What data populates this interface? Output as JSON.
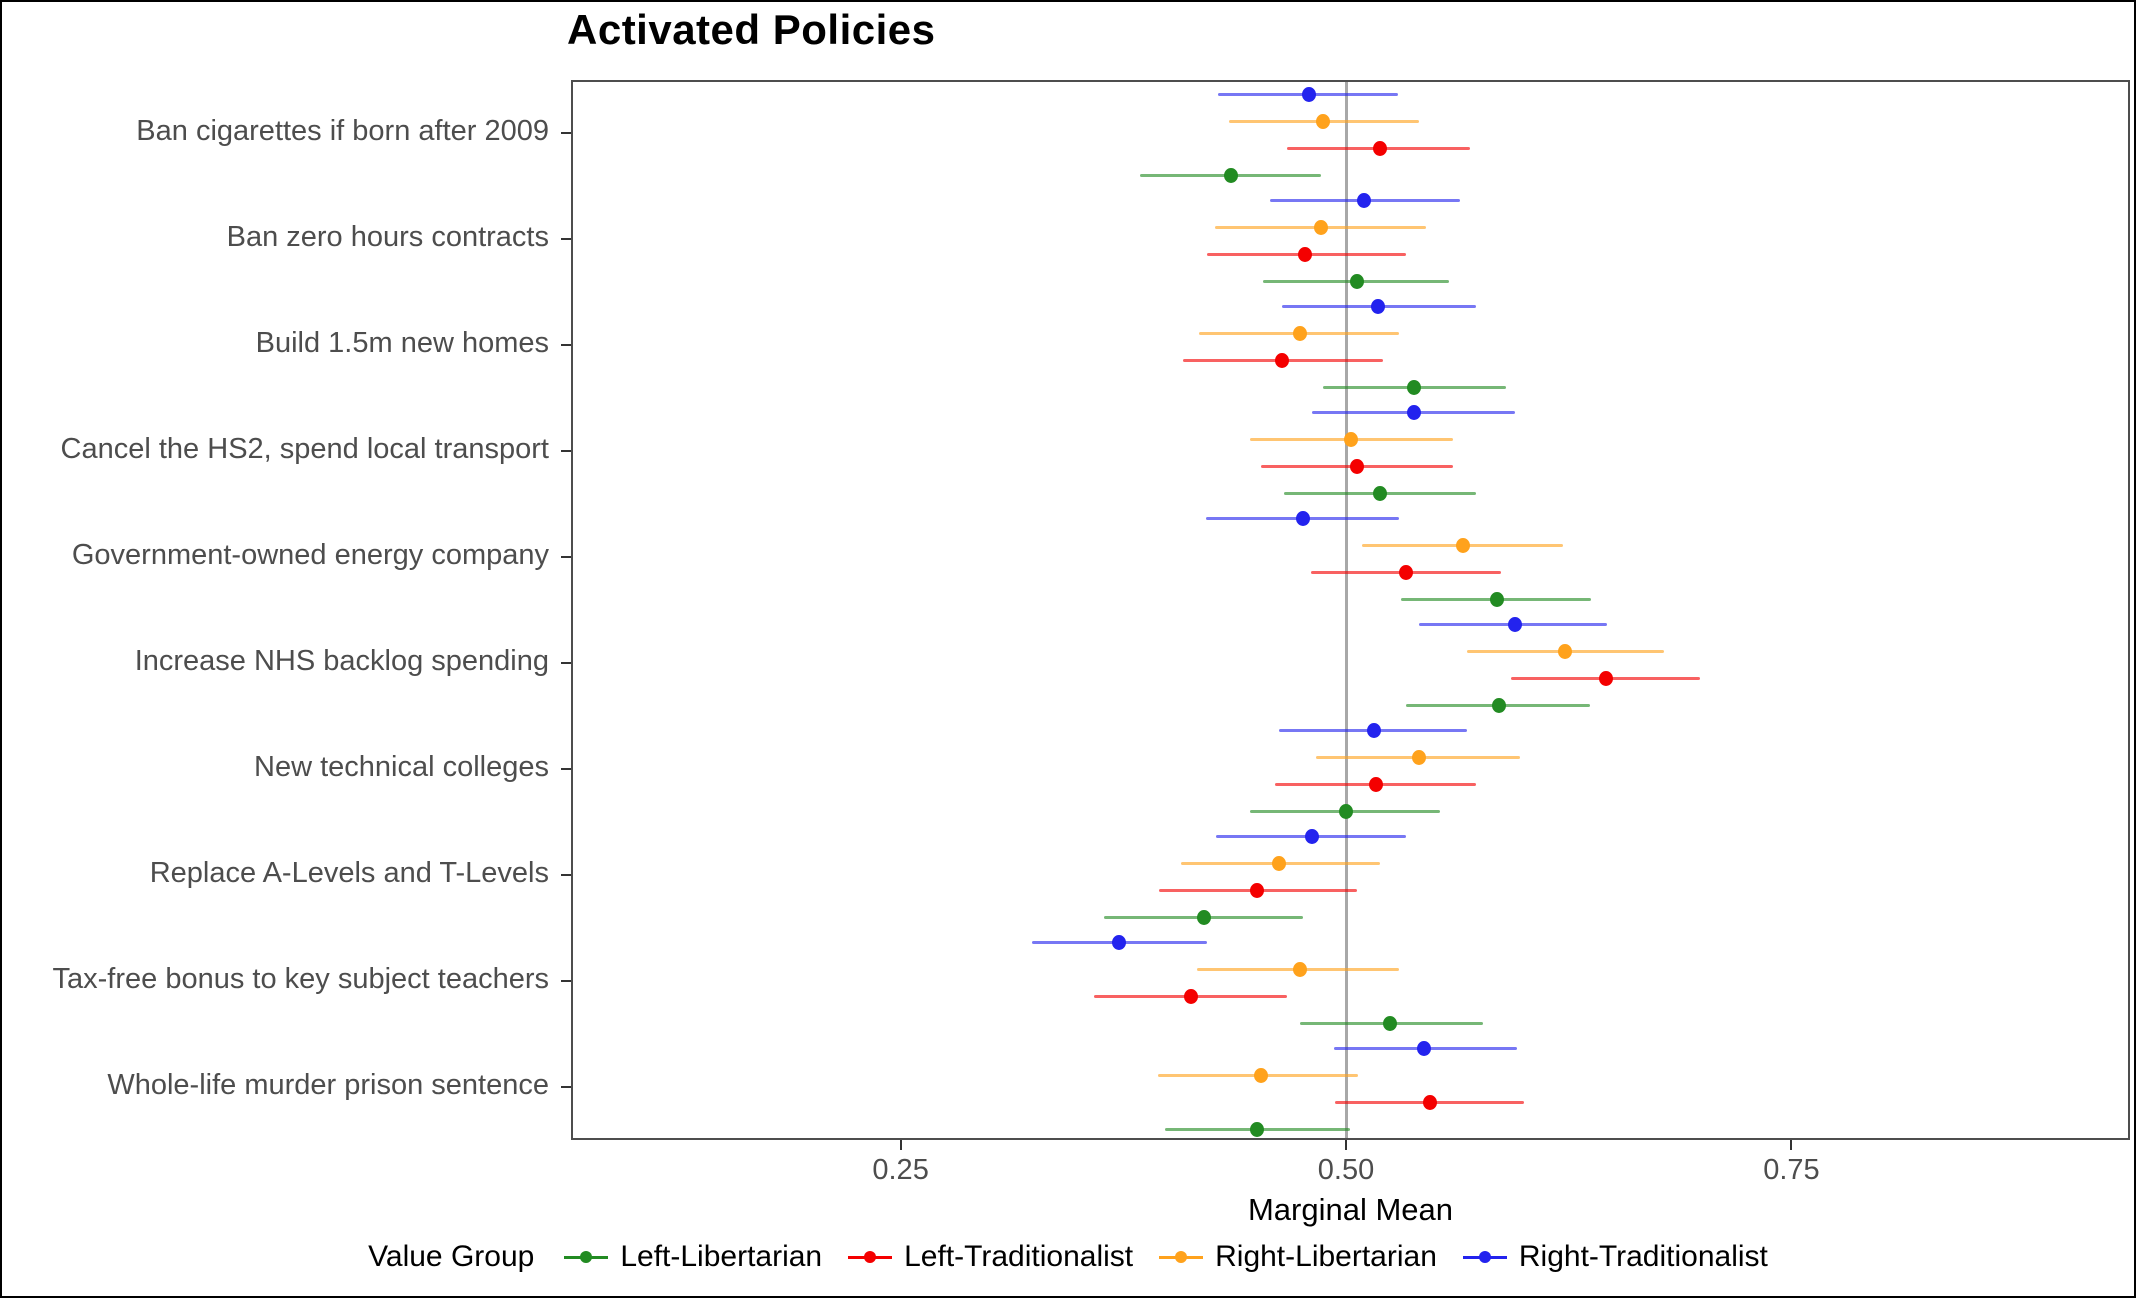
{
  "chart_data": {
    "type": "scatter",
    "variant": "dot-whisker",
    "title": "Activated Policies",
    "xlabel": "Marginal Mean",
    "legend_title": "Value Group",
    "legend_position": "bottom",
    "grid": false,
    "xlim": [
      0.065,
      0.94
    ],
    "x_ticks": [
      {
        "value": 0.25,
        "label": "0.25"
      },
      {
        "value": 0.5,
        "label": "0.50"
      },
      {
        "value": 0.75,
        "label": "0.75"
      }
    ],
    "reference_line_x": 0.5,
    "categories": [
      "Ban cigarettes if born after 2009",
      "Ban zero hours contracts",
      "Build 1.5m new homes",
      "Cancel the HS2, spend local transport",
      "Government-owned energy company",
      "Increase NHS backlog spending",
      "New technical colleges",
      "Replace A-Levels and T-Levels",
      "Tax-free bonus to key subject teachers",
      "Whole-life murder prison sentence"
    ],
    "row_order_top_to_bottom": [
      "Right-Traditionalist",
      "Right-Libertarian",
      "Left-Traditionalist",
      "Left-Libertarian"
    ],
    "series": [
      {
        "name": "Left-Libertarian",
        "color": "#228B22",
        "values": [
          0.435,
          0.506,
          0.538,
          0.519,
          0.585,
          0.586,
          0.5,
          0.42,
          0.525,
          0.45
        ],
        "ci": [
          [
            0.384,
            0.486
          ],
          [
            0.453,
            0.558
          ],
          [
            0.487,
            0.59
          ],
          [
            0.465,
            0.573
          ],
          [
            0.531,
            0.638
          ],
          [
            0.534,
            0.637
          ],
          [
            0.446,
            0.553
          ],
          [
            0.364,
            0.476
          ],
          [
            0.474,
            0.577
          ],
          [
            0.398,
            0.502
          ]
        ]
      },
      {
        "name": "Left-Traditionalist",
        "color": "#F40000",
        "values": [
          0.519,
          0.477,
          0.464,
          0.506,
          0.534,
          0.646,
          0.517,
          0.45,
          0.413,
          0.547
        ],
        "ci": [
          [
            0.467,
            0.57
          ],
          [
            0.422,
            0.534
          ],
          [
            0.408,
            0.521
          ],
          [
            0.452,
            0.56
          ],
          [
            0.48,
            0.587
          ],
          [
            0.593,
            0.699
          ],
          [
            0.46,
            0.573
          ],
          [
            0.395,
            0.506
          ],
          [
            0.358,
            0.467
          ],
          [
            0.494,
            0.6
          ]
        ]
      },
      {
        "name": "Right-Libertarian",
        "color": "#FFA21C",
        "values": [
          0.487,
          0.486,
          0.474,
          0.503,
          0.566,
          0.623,
          0.541,
          0.462,
          0.474,
          0.452
        ],
        "ci": [
          [
            0.434,
            0.541
          ],
          [
            0.426,
            0.545
          ],
          [
            0.417,
            0.53
          ],
          [
            0.446,
            0.56
          ],
          [
            0.509,
            0.622
          ],
          [
            0.568,
            0.679
          ],
          [
            0.483,
            0.598
          ],
          [
            0.407,
            0.519
          ],
          [
            0.416,
            0.53
          ],
          [
            0.394,
            0.507
          ]
        ]
      },
      {
        "name": "Right-Traditionalist",
        "color": "#2323EE",
        "values": [
          0.479,
          0.51,
          0.518,
          0.538,
          0.476,
          0.595,
          0.516,
          0.481,
          0.372,
          0.544
        ],
        "ci": [
          [
            0.428,
            0.529
          ],
          [
            0.457,
            0.564
          ],
          [
            0.464,
            0.573
          ],
          [
            0.481,
            0.595
          ],
          [
            0.421,
            0.53
          ],
          [
            0.541,
            0.647
          ],
          [
            0.462,
            0.568
          ],
          [
            0.427,
            0.534
          ],
          [
            0.323,
            0.422
          ],
          [
            0.493,
            0.596
          ]
        ]
      }
    ]
  },
  "style": {
    "axis_text_color": "#4d4d4d",
    "panel_border_color": "#4d4d4d",
    "reference_line_color": "#a8a8a8",
    "background": "#ffffff",
    "frame_color": "#000000"
  }
}
